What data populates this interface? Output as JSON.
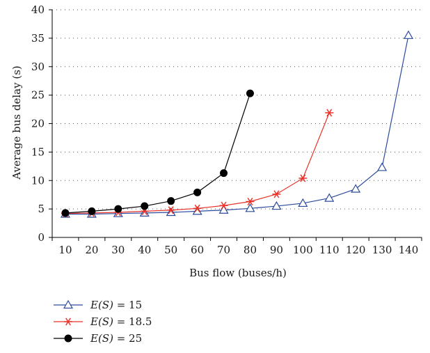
{
  "chart_data": {
    "type": "line",
    "xlabel": "Bus flow (buses/h)",
    "ylabel": "Average bus delay (s)",
    "ylim": [
      0,
      40
    ],
    "yticks": [
      0,
      5,
      10,
      15,
      20,
      25,
      30,
      35,
      40
    ],
    "categories": [
      10,
      20,
      30,
      40,
      50,
      60,
      70,
      80,
      90,
      100,
      110,
      120,
      130,
      140
    ],
    "grid": "horizontal dotted",
    "legend_position": "bottom-left",
    "series": [
      {
        "name_prefix": "E(S)",
        "name_suffix": " = 15",
        "color": "#2b4a9c",
        "marker": "open-triangle",
        "x": [
          10,
          20,
          30,
          40,
          50,
          60,
          70,
          80,
          90,
          100,
          110,
          120,
          130,
          140
        ],
        "values": [
          4.1,
          4.1,
          4.2,
          4.3,
          4.4,
          4.6,
          4.8,
          5.1,
          5.5,
          6.0,
          6.9,
          8.5,
          12.3,
          35.5
        ]
      },
      {
        "name_prefix": "E(S)",
        "name_suffix": " = 18.5",
        "color": "#e8332a",
        "marker": "asterisk",
        "x": [
          10,
          20,
          30,
          40,
          50,
          60,
          70,
          80,
          90,
          100,
          110
        ],
        "values": [
          4.2,
          4.3,
          4.4,
          4.6,
          4.8,
          5.1,
          5.6,
          6.3,
          7.6,
          10.4,
          21.9
        ]
      },
      {
        "name_prefix": "E(S)",
        "name_suffix": " = 25",
        "color": "#000000",
        "marker": "filled-circle",
        "x": [
          10,
          20,
          30,
          40,
          50,
          60,
          70,
          80
        ],
        "values": [
          4.3,
          4.6,
          5.0,
          5.5,
          6.4,
          7.9,
          11.3,
          25.3
        ]
      }
    ]
  }
}
